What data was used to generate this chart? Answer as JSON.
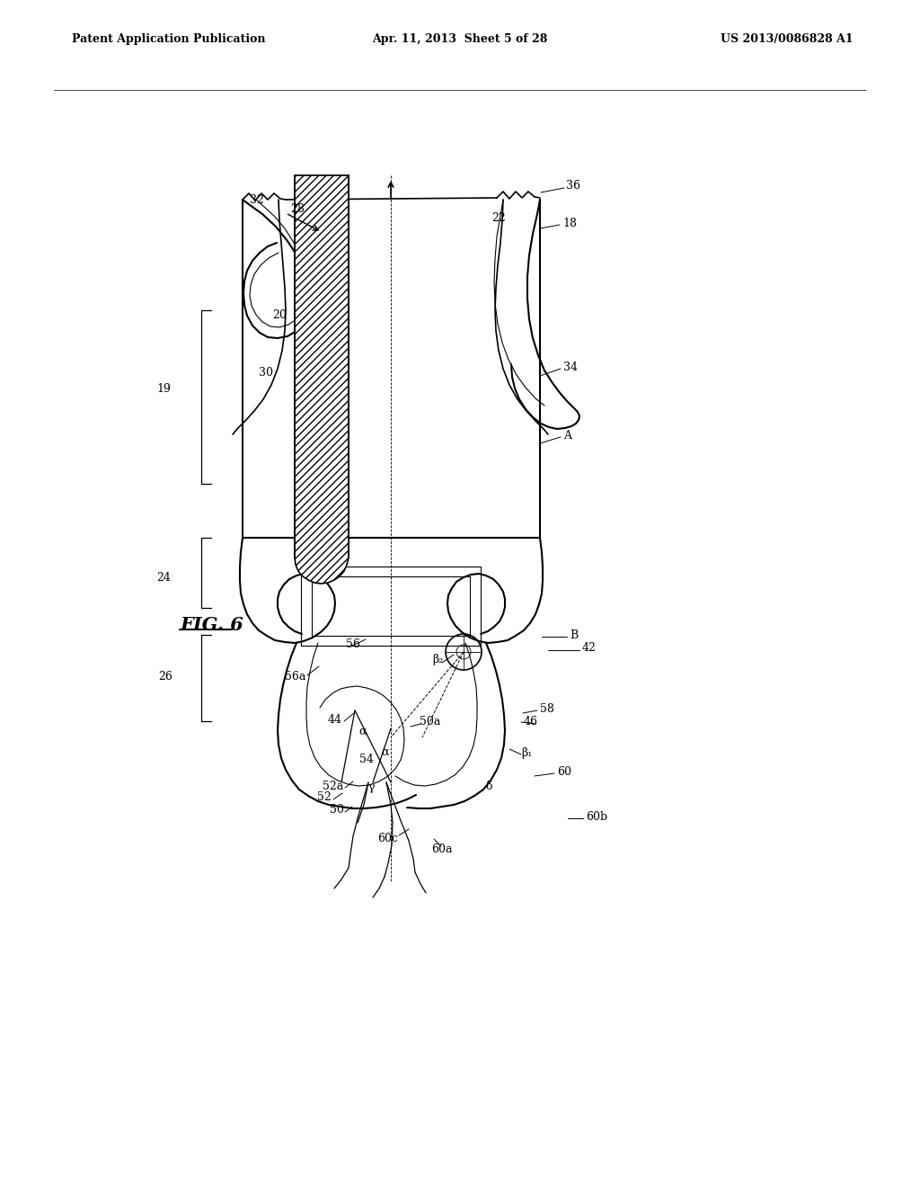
{
  "patent_header_left": "Patent Application Publication",
  "patent_header_mid": "Apr. 11, 2013  Sheet 5 of 28",
  "patent_header_right": "US 2013/0086828 A1",
  "fig_label": "FIG. 6",
  "background_color": "#ffffff",
  "line_color": "#000000",
  "lw_main": 1.5,
  "lw_med": 1.2,
  "lw_thin": 0.8,
  "lw_leader": 0.7,
  "label_fontsize": 9,
  "fig_label_fontsize": 15
}
